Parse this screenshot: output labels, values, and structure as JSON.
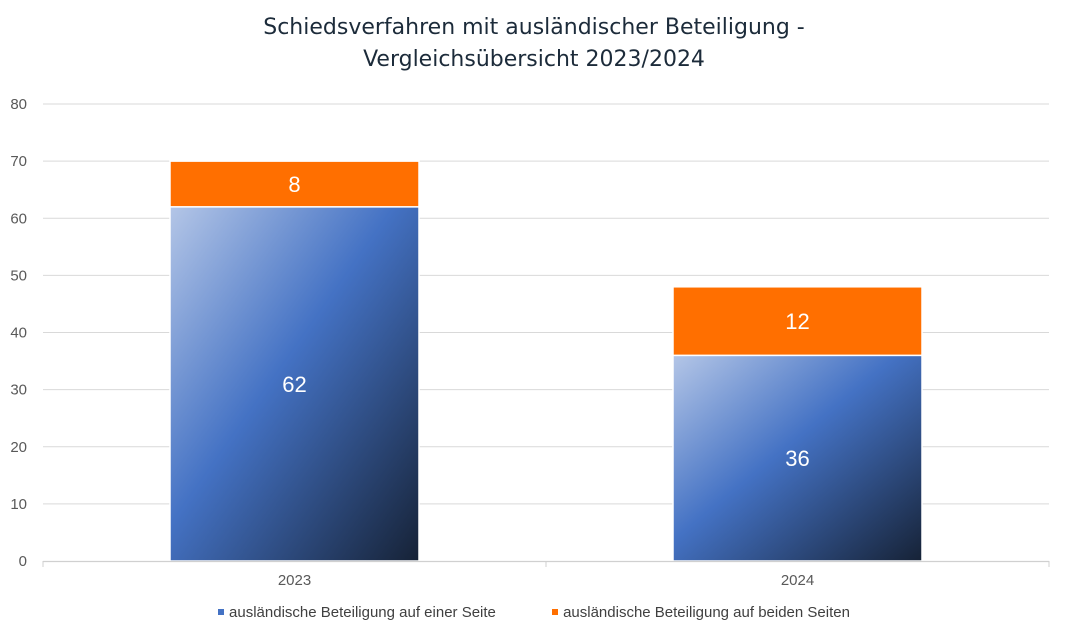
{
  "chart_data": {
    "type": "bar",
    "stacked": true,
    "title": "Schiedsverfahren mit ausländischer Beteiligung - Vergleichsübersicht 2023/2024",
    "title_lines": [
      "Schiedsverfahren mit ausländischer Beteiligung -",
      "Vergleichsübersicht 2023/2024"
    ],
    "categories": [
      "2023",
      "2024"
    ],
    "series": [
      {
        "name": "ausländische Beteiligung auf einer Seite",
        "values": [
          62,
          36
        ],
        "color": "#4472c4",
        "gradient": [
          "#b4c6e7",
          "#4472c4",
          "#162236"
        ]
      },
      {
        "name": "ausländische Beteiligung auf beiden Seiten",
        "values": [
          8,
          12
        ],
        "color": "#ff6f00"
      }
    ],
    "xlabel": "",
    "ylabel": "",
    "ylim": [
      0,
      80
    ],
    "yticks": [
      0,
      10,
      20,
      30,
      40,
      50,
      60,
      70,
      80
    ],
    "grid": true,
    "data_labels": true,
    "legend_position": "bottom"
  }
}
